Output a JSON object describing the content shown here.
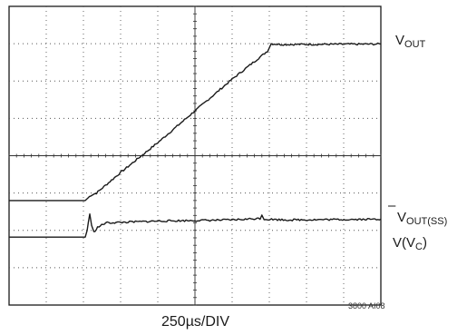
{
  "chart_data": {
    "type": "line",
    "x_divisions": 10,
    "y_divisions": 8,
    "grid": true,
    "xlabel": "250µs/DIV",
    "figure_code": "3800 AI08",
    "time_per_div_us": 250,
    "series": [
      {
        "name": "VOUT",
        "label_main": "V",
        "label_sub": "OUT",
        "points": [
          [
            0.0,
            2.8
          ],
          [
            2.05,
            2.8
          ],
          [
            2.2,
            2.94
          ],
          [
            2.35,
            3.0
          ],
          [
            3.0,
            3.55
          ],
          [
            4.0,
            4.35
          ],
          [
            5.0,
            5.2
          ],
          [
            6.0,
            6.05
          ],
          [
            6.95,
            6.8
          ],
          [
            7.05,
            7.0
          ],
          [
            7.3,
            6.98
          ],
          [
            10.0,
            6.99
          ]
        ]
      },
      {
        "name": "VOUT(SS)",
        "label_main": "V",
        "label_sub": "OUT(SS)",
        "marker": "–",
        "reference_level": 2.85
      },
      {
        "name": "V(VC)",
        "label_pre": "V(V",
        "label_sub": "C",
        "label_post": ")",
        "points": [
          [
            0.0,
            1.82
          ],
          [
            2.05,
            1.82
          ],
          [
            2.1,
            2.0
          ],
          [
            2.17,
            2.45
          ],
          [
            2.22,
            2.12
          ],
          [
            2.28,
            1.95
          ],
          [
            2.38,
            2.08
          ],
          [
            2.6,
            2.2
          ],
          [
            4.0,
            2.25
          ],
          [
            6.0,
            2.28
          ],
          [
            6.75,
            2.32
          ],
          [
            6.8,
            2.42
          ],
          [
            6.86,
            2.3
          ],
          [
            7.5,
            2.28
          ],
          [
            10.0,
            2.3
          ]
        ]
      }
    ]
  }
}
